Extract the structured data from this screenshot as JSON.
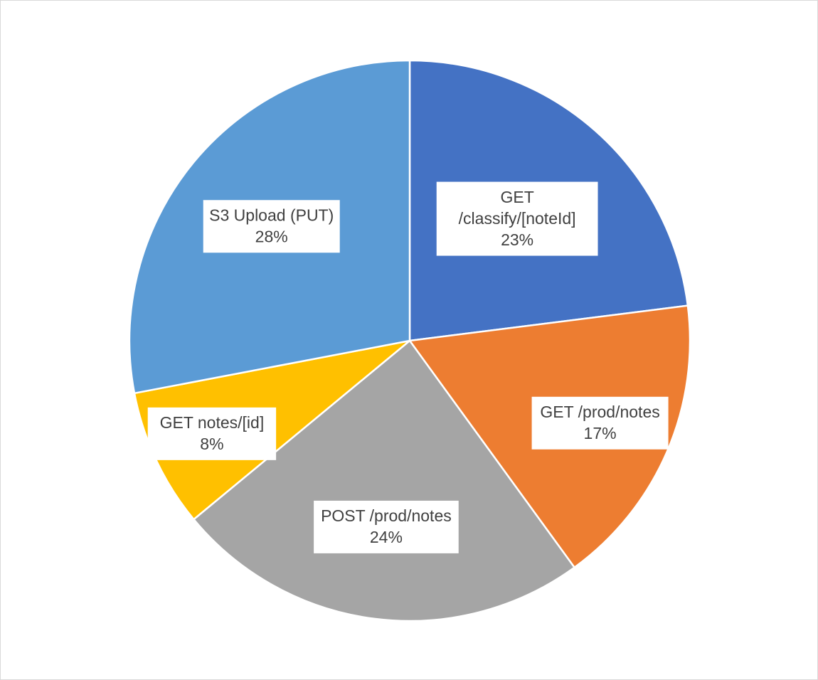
{
  "chart_data": {
    "type": "pie",
    "title": "",
    "legend": "none",
    "start_angle_deg": 0,
    "direction": "clockwise",
    "slices": [
      {
        "label_lines": [
          "GET",
          "/classify/[noteId]"
        ],
        "percent_label": "23%",
        "value": 23,
        "color": "#4472C4"
      },
      {
        "label_lines": [
          "GET /prod/notes"
        ],
        "percent_label": "17%",
        "value": 17,
        "color": "#ED7D31"
      },
      {
        "label_lines": [
          "POST /prod/notes"
        ],
        "percent_label": "24%",
        "value": 24,
        "color": "#A5A5A5"
      },
      {
        "label_lines": [
          "GET notes/[id]"
        ],
        "percent_label": "8%",
        "value": 8,
        "color": "#FFC000"
      },
      {
        "label_lines": [
          "S3 Upload (PUT)"
        ],
        "percent_label": "28%",
        "value": 28,
        "color": "#5B9BD5"
      }
    ]
  }
}
